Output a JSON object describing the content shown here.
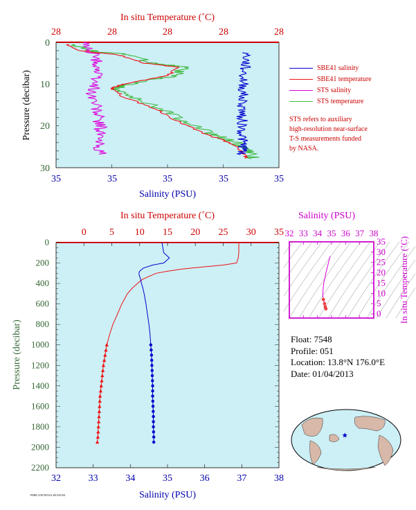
{
  "colors": {
    "salinity_line": "#0000cc",
    "temperature_line": "#ee1111",
    "sts_salinity": "#dd00dd",
    "sts_temperature": "#44bb44",
    "plot_bg": "#cdeff6",
    "axis_red": "#cc0000",
    "axis_blue": "#0000aa",
    "axis_green": "#336633",
    "magenta": "#cc00cc"
  },
  "legend": {
    "items": [
      {
        "label": "SBE41 salinity",
        "color": "#0000cc"
      },
      {
        "label": "SBE41 temperature",
        "color": "#ee1111"
      },
      {
        "label": "STS salinity",
        "color": "#dd00dd"
      },
      {
        "label": "STS temperature",
        "color": "#44bb44"
      }
    ],
    "note_lines": [
      "STS refers to auxiliary",
      "high-resolution near-surface",
      "T-S measurements funded",
      "by NASA."
    ]
  },
  "info": {
    "float": "Float:  7548",
    "profile": "Profile:  051",
    "location": "Location:  13.8°N  176.0°E",
    "date": "Date:  01/04/2013"
  },
  "footer_text": "PMEL/UW/NOAA 2013/01/04",
  "chart_data": [
    {
      "type": "line",
      "panel": "near-surface",
      "top_axis_label": "In situ Temperature (˚C)",
      "top_tick_labels": [
        "28",
        "28",
        "28",
        "28",
        "28"
      ],
      "bottom_axis_label": "Salinity (PSU)",
      "bottom_tick_labels": [
        "35",
        "35",
        "35",
        "35",
        "35"
      ],
      "y_axis_label": "Pressure (decibar)",
      "y_tick_labels": [
        "0",
        "10",
        "20",
        "30"
      ],
      "ylim": [
        0,
        30
      ],
      "series": [
        {
          "name": "SBE41 salinity",
          "pressure": [
            2.5,
            5,
            8,
            11,
            14,
            17,
            20,
            23,
            25,
            27
          ],
          "value_frac": [
            0.855,
            0.85,
            0.84,
            0.84,
            0.835,
            0.835,
            0.835,
            0.835,
            0.84,
            0.835
          ]
        },
        {
          "name": "SBE41 temperature",
          "pressure": [
            0.5,
            2,
            3,
            5,
            6,
            8,
            10,
            11,
            13,
            16,
            19,
            22,
            24,
            26,
            28
          ],
          "value_frac": [
            0.05,
            0.1,
            0.28,
            0.4,
            0.55,
            0.5,
            0.3,
            0.25,
            0.3,
            0.45,
            0.55,
            0.67,
            0.78,
            0.83,
            0.86
          ]
        },
        {
          "name": "STS salinity",
          "pressure": [
            0,
            3,
            6,
            9,
            12,
            15,
            18,
            21,
            24,
            27
          ],
          "value_frac": [
            0.12,
            0.17,
            0.19,
            0.18,
            0.16,
            0.18,
            0.19,
            0.2,
            0.19,
            0.2
          ]
        },
        {
          "name": "STS temperature",
          "pressure": [
            0.5,
            2,
            3,
            5,
            6,
            8,
            10,
            11,
            13,
            16,
            19,
            22,
            24,
            26,
            28
          ],
          "value_frac": [
            0.08,
            0.15,
            0.33,
            0.44,
            0.58,
            0.53,
            0.33,
            0.27,
            0.33,
            0.48,
            0.58,
            0.7,
            0.81,
            0.86,
            0.89
          ]
        }
      ]
    },
    {
      "type": "line",
      "panel": "full-depth",
      "top_axis_label": "In situ Temperature (˚C)",
      "xlim_temperature": [
        -5,
        35
      ],
      "top_tick_labels": [
        "0",
        "5",
        "10",
        "15",
        "20",
        "25",
        "30",
        "35"
      ],
      "bottom_axis_label": "Salinity (PSU)",
      "xlim_salinity": [
        32,
        38
      ],
      "bottom_tick_labels": [
        "32",
        "33",
        "34",
        "35",
        "36",
        "37",
        "38"
      ],
      "y_axis_label": "Pressure (decibar)",
      "ylim": [
        0,
        2200
      ],
      "y_tick_labels": [
        "0",
        "200",
        "400",
        "600",
        "800",
        "1000",
        "1200",
        "1400",
        "1600",
        "1800",
        "2000",
        "2200"
      ],
      "series": [
        {
          "name": "SBE41 temperature",
          "pressure": [
            0,
            100,
            150,
            200,
            220,
            240,
            260,
            280,
            300,
            330,
            360,
            400,
            450,
            500,
            600,
            700,
            800,
            900,
            1000,
            1100,
            1200,
            1300,
            1400,
            1500,
            1600,
            1700,
            1800,
            1900,
            1950
          ],
          "values": [
            27.8,
            27.8,
            27.7,
            27.4,
            25,
            21,
            17.5,
            15,
            13,
            11.7,
            10.5,
            9.6,
            8.6,
            7.8,
            6.8,
            6,
            5.2,
            4.6,
            4.1,
            3.8,
            3.5,
            3.3,
            3.1,
            2.9,
            2.8,
            2.7,
            2.6,
            2.5,
            2.4
          ]
        },
        {
          "name": "SBE41 salinity",
          "pressure": [
            0,
            100,
            150,
            200,
            220,
            250,
            280,
            300,
            320,
            350,
            400,
            450,
            500,
            600,
            700,
            800,
            900,
            1000,
            1100,
            1200,
            1300,
            1400,
            1500,
            1600,
            1700,
            1800,
            1900,
            1950
          ],
          "values": [
            34.85,
            34.9,
            35.05,
            34.9,
            34.6,
            34.35,
            34.25,
            34.23,
            34.24,
            34.27,
            34.3,
            34.34,
            34.37,
            34.42,
            34.46,
            34.5,
            34.53,
            34.55,
            34.57,
            34.58,
            34.59,
            34.6,
            34.6,
            34.61,
            34.62,
            34.62,
            34.63,
            34.63
          ]
        }
      ],
      "marker_pressures": [
        1000,
        1050,
        1100,
        1150,
        1200,
        1250,
        1300,
        1350,
        1400,
        1450,
        1500,
        1550,
        1600,
        1650,
        1700,
        1750,
        1800,
        1850,
        1900,
        1950
      ]
    },
    {
      "type": "scatter",
      "panel": "T-S diagram",
      "top_axis_label": "Salinity (PSU)",
      "xlim": [
        32,
        38
      ],
      "x_tick_labels": [
        "32",
        "33",
        "34",
        "35",
        "36",
        "37",
        "38"
      ],
      "right_axis_label": "In situ Temperature (˚C)",
      "ylim": [
        -2,
        35
      ],
      "y_tick_labels": [
        "0",
        "5",
        "10",
        "15",
        "20",
        "25",
        "30",
        "35"
      ],
      "profile": {
        "salinity": [
          34.9,
          34.85,
          34.75,
          34.6,
          34.45,
          34.4,
          34.38,
          34.42,
          34.5,
          34.55,
          34.6
        ],
        "temperature": [
          28,
          27,
          24,
          20,
          15,
          12,
          9,
          7,
          5,
          3.5,
          2.5
        ]
      }
    },
    {
      "type": "map",
      "panel": "location map",
      "marker": {
        "lat": 13.8,
        "lon": 176.0
      }
    }
  ]
}
